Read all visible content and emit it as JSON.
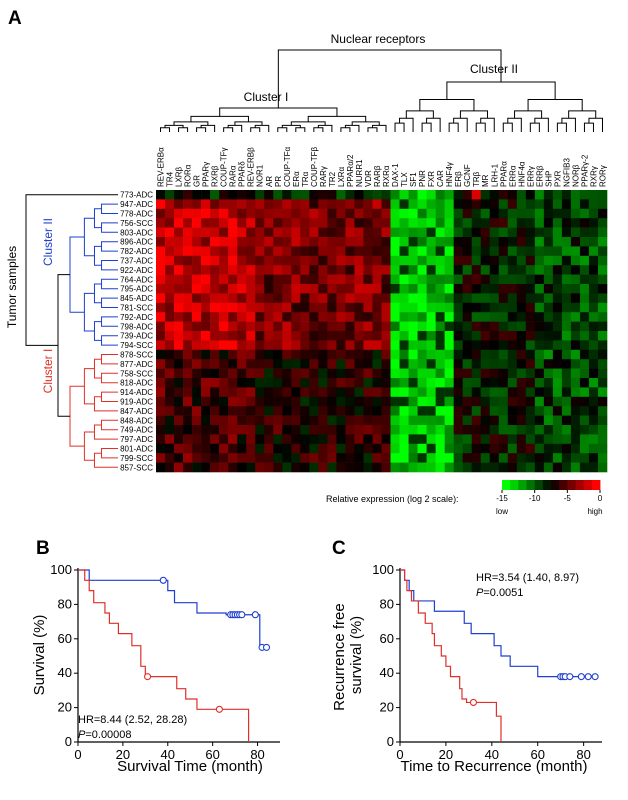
{
  "figure": {
    "panel_a": "A",
    "panel_b": "B",
    "panel_c": "C"
  },
  "chart_data": [
    {
      "type": "heatmap",
      "title": "Nuclear receptors",
      "ylabel": "Tumor samples",
      "receptor_clusters": [
        "Cluster I",
        "Cluster II"
      ],
      "sample_clusters": [
        "Cluster II",
        "Cluster I"
      ],
      "columns": [
        "REV-ERBα",
        "TR4",
        "LXRβ",
        "RORα",
        "GR",
        "PPARγ",
        "RXRβ",
        "COUP-TFγ",
        "RARα",
        "PPARδ",
        "REV-ERBβ",
        "NOR1",
        "AR",
        "PR",
        "COUP-TFα",
        "ERα",
        "TRα",
        "COUP-TFβ",
        "RARγ",
        "TR2",
        "LXRα",
        "PPARα/2",
        "NURR1",
        "VDR",
        "RARβ",
        "RXRα",
        "DAX-1",
        "TLX",
        "SF1",
        "PNR",
        "FXR",
        "CAR",
        "HNF4γ",
        "ERβ",
        "GCNF",
        "TRβ",
        "MR",
        "LRH-1",
        "PPARα",
        "ERRα",
        "HNF4α",
        "ERRγ",
        "ERRβ",
        "SHP",
        "PXR",
        "NGFIB3",
        "NORβ",
        "PPARγ-2",
        "RXRγ",
        "RORγ"
      ],
      "rows": [
        "773-ADC",
        "947-ADC",
        "778-ADC",
        "756-SCC",
        "803-ADC",
        "896-ADC",
        "782-ADC",
        "737-ADC",
        "922-ADC",
        "764-ADC",
        "795-ADC",
        "845-ADC",
        "781-SCC",
        "792-ADC",
        "798-ADC",
        "739-ADC",
        "794-SCC",
        "878-SCC",
        "877-ADC",
        "758-SCC",
        "818-ADC",
        "914-ADC",
        "919-ADC",
        "847-ADC",
        "848-ADC",
        "749-ADC",
        "797-ADC",
        "801-ADC",
        "799-SCC",
        "857-SCC"
      ],
      "colorbar": {
        "label": "Relative expression (log 2 scale):",
        "ticks": [
          "-15",
          "-10",
          "-5",
          "0"
        ],
        "low_label": "low",
        "high_label": "high",
        "range": [
          -15,
          0
        ],
        "colors": [
          "#00ff00",
          "#000000",
          "#ff0000"
        ]
      }
    },
    {
      "type": "line",
      "panel": "B",
      "xlabel": "Survival Time (month)",
      "ylabel": "Survival (%)",
      "xlim": [
        0,
        90
      ],
      "ylim": [
        0,
        100
      ],
      "xticks": [
        0,
        20,
        40,
        60,
        80
      ],
      "yticks": [
        0,
        20,
        40,
        60,
        80,
        100
      ],
      "stat_hr": "HR=8.44 (2.52, 28.28)",
      "stat_p": "=0.00008",
      "stat_p_label": "P",
      "series": [
        {
          "color": "#1f3fd0",
          "steps": [
            [
              0,
              100
            ],
            [
              5,
              100
            ],
            [
              5,
              94
            ],
            [
              40,
              94
            ],
            [
              40,
              88
            ],
            [
              43,
              88
            ],
            [
              43,
              81
            ],
            [
              53,
              81
            ],
            [
              53,
              75
            ],
            [
              66,
              75
            ],
            [
              66,
              74
            ],
            [
              81,
              74
            ],
            [
              81,
              55
            ],
            [
              85,
              55
            ]
          ],
          "censored": [
            [
              38,
              94
            ],
            [
              68,
              74
            ],
            [
              69,
              74
            ],
            [
              70,
              74
            ],
            [
              71,
              74
            ],
            [
              72,
              74
            ],
            [
              73,
              74
            ],
            [
              79,
              74
            ],
            [
              82,
              55
            ],
            [
              84,
              55
            ]
          ]
        },
        {
          "color": "#e0302a",
          "steps": [
            [
              0,
              100
            ],
            [
              3,
              100
            ],
            [
              3,
              94
            ],
            [
              5,
              94
            ],
            [
              5,
              88
            ],
            [
              7,
              88
            ],
            [
              7,
              81
            ],
            [
              12,
              81
            ],
            [
              12,
              75
            ],
            [
              14,
              75
            ],
            [
              14,
              69
            ],
            [
              18,
              69
            ],
            [
              18,
              63
            ],
            [
              24,
              63
            ],
            [
              24,
              56
            ],
            [
              28,
              56
            ],
            [
              28,
              44
            ],
            [
              30,
              44
            ],
            [
              30,
              38
            ],
            [
              44,
              38
            ],
            [
              44,
              31
            ],
            [
              48,
              31
            ],
            [
              48,
              25
            ],
            [
              53,
              25
            ],
            [
              53,
              19
            ],
            [
              76,
              19
            ],
            [
              76,
              0
            ]
          ],
          "censored": [
            [
              31,
              38
            ],
            [
              63,
              19
            ]
          ]
        }
      ]
    },
    {
      "type": "line",
      "panel": "C",
      "xlabel": "Time to Recurrence (month)",
      "ylabel": "Recurrence free survival (%)",
      "ylabel_lines": [
        "Recurrence free",
        "survival (%)"
      ],
      "xlim": [
        0,
        88
      ],
      "ylim": [
        0,
        100
      ],
      "xticks": [
        0,
        20,
        40,
        60,
        80
      ],
      "yticks": [
        0,
        20,
        40,
        60,
        80,
        100
      ],
      "stat_hr": "HR=3.54 (1.40, 8.97)",
      "stat_p": "=0.0051",
      "stat_p_label": "P",
      "series": [
        {
          "color": "#1f3fd0",
          "steps": [
            [
              0,
              100
            ],
            [
              2,
              100
            ],
            [
              2,
              94
            ],
            [
              4,
              94
            ],
            [
              4,
              88
            ],
            [
              6,
              88
            ],
            [
              6,
              82
            ],
            [
              15,
              82
            ],
            [
              15,
              76
            ],
            [
              28,
              76
            ],
            [
              28,
              69
            ],
            [
              31,
              69
            ],
            [
              31,
              63
            ],
            [
              41,
              63
            ],
            [
              41,
              56
            ],
            [
              44,
              56
            ],
            [
              44,
              50
            ],
            [
              48,
              50
            ],
            [
              48,
              44
            ],
            [
              60,
              44
            ],
            [
              60,
              38
            ],
            [
              85,
              38
            ]
          ],
          "censored": [
            [
              70,
              38
            ],
            [
              71,
              38
            ],
            [
              72,
              38
            ],
            [
              74,
              38
            ],
            [
              79,
              38
            ],
            [
              82,
              38
            ],
            [
              85,
              38
            ]
          ]
        },
        {
          "color": "#e0302a",
          "steps": [
            [
              0,
              100
            ],
            [
              2,
              100
            ],
            [
              2,
              94
            ],
            [
              3,
              94
            ],
            [
              3,
              88
            ],
            [
              5,
              88
            ],
            [
              5,
              82
            ],
            [
              8,
              82
            ],
            [
              8,
              75
            ],
            [
              11,
              75
            ],
            [
              11,
              69
            ],
            [
              14,
              69
            ],
            [
              14,
              63
            ],
            [
              15,
              63
            ],
            [
              15,
              56
            ],
            [
              18,
              56
            ],
            [
              18,
              50
            ],
            [
              20,
              50
            ],
            [
              20,
              44
            ],
            [
              22,
              44
            ],
            [
              22,
              38
            ],
            [
              26,
              38
            ],
            [
              26,
              31
            ],
            [
              27,
              31
            ],
            [
              27,
              25
            ],
            [
              29,
              25
            ],
            [
              29,
              23
            ],
            [
              42,
              23
            ],
            [
              42,
              15
            ],
            [
              44,
              15
            ],
            [
              44,
              0
            ]
          ],
          "censored": [
            [
              32,
              23
            ]
          ]
        }
      ]
    }
  ]
}
